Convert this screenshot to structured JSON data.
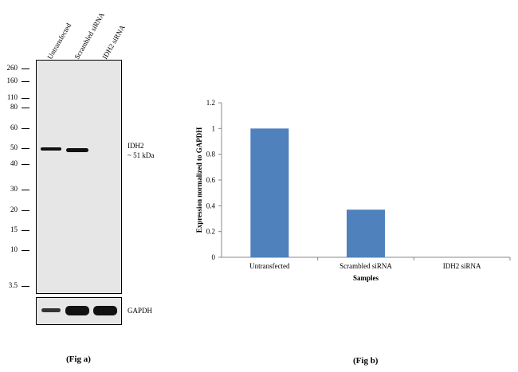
{
  "fig_a": {
    "lanes": [
      "Untransfected",
      "Scrambled siRNA",
      "IDH2 siRNA"
    ],
    "markers": [
      "260",
      "160",
      "110",
      "80",
      "60",
      "50",
      "40",
      "30",
      "20",
      "15",
      "10",
      "3.5"
    ],
    "target_label": "IDH2",
    "target_size": "~ 51 kDa",
    "loading_label": "GAPDH",
    "caption": "(Fig a)"
  },
  "fig_b": {
    "caption": "(Fig b)"
  },
  "chart_data": {
    "type": "bar",
    "categories": [
      "Untransfected",
      "Scrambled siRNA",
      "IDH2 siRNA"
    ],
    "values": [
      1.0,
      0.37,
      0.0
    ],
    "xlabel": "Samples",
    "ylabel": "Expression normalized to GAPDH",
    "ylim": [
      0,
      1.2
    ],
    "yticks": [
      "0",
      "0.2",
      "0.4",
      "0.6",
      "0.8",
      "1",
      "1.2"
    ],
    "bar_color": "#4F81BD",
    "grid": false
  }
}
